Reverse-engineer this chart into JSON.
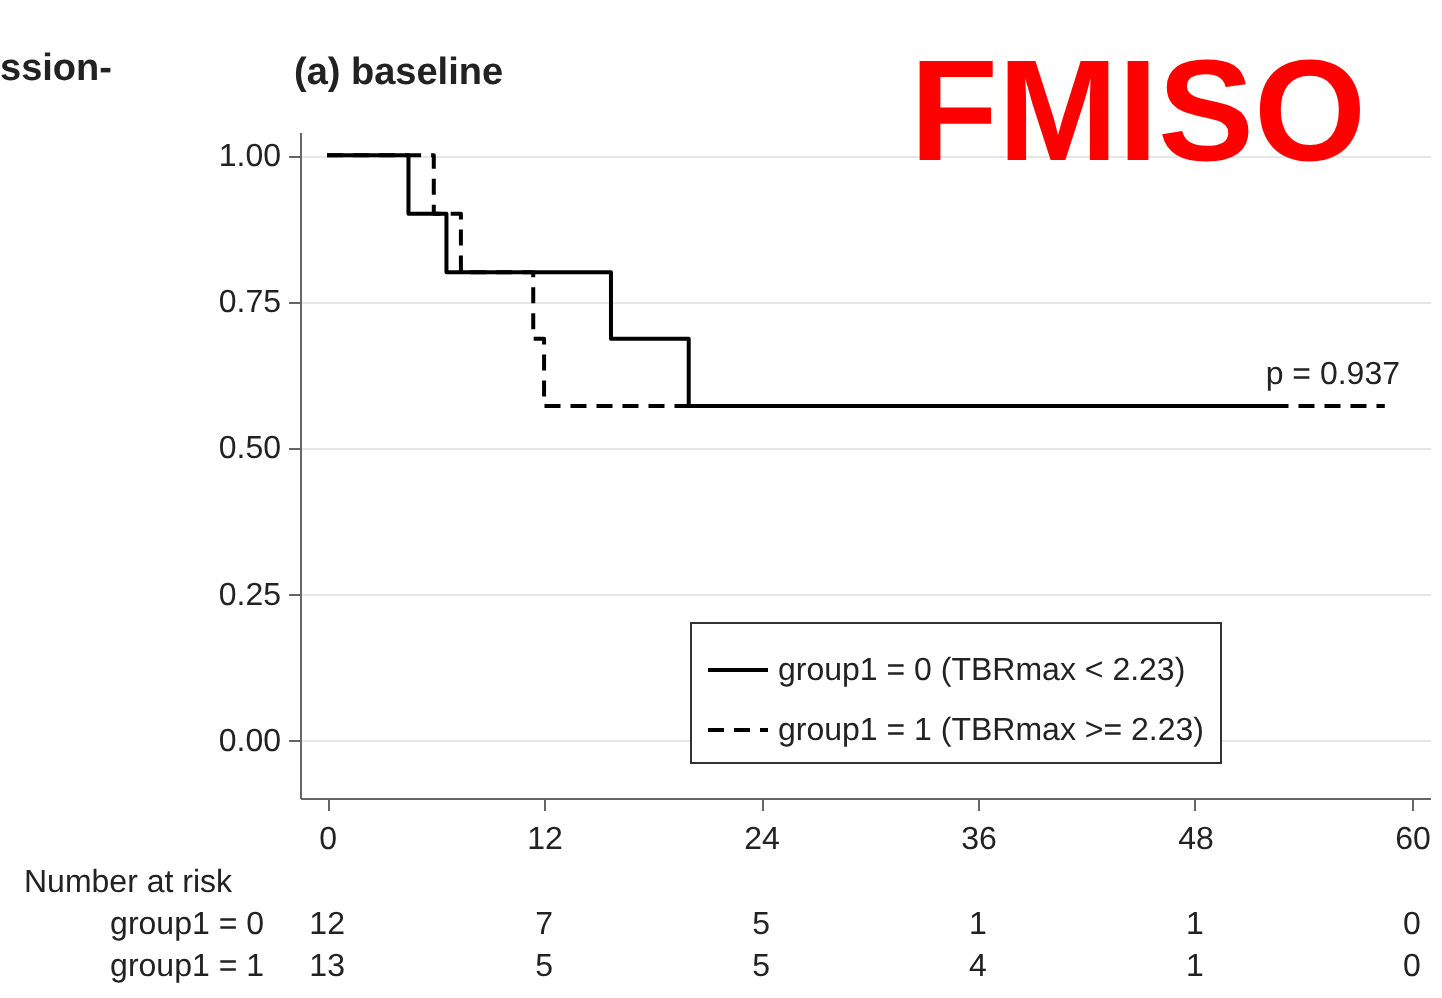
{
  "chart_data": {
    "type": "step",
    "title": "(a) baseline",
    "series": [
      {
        "name": "group1 = 0 (TBRmax < 2.23)",
        "color": "#000000",
        "line_style": "solid",
        "x": [
          0,
          4.5,
          6.6,
          15.7,
          20,
          52.4
        ],
        "values": [
          1,
          0.9,
          0.8,
          0.686,
          0.571,
          0.571
        ]
      },
      {
        "name": "group1 = 1 (TBRmax >= 2.23)",
        "color": "#000000",
        "line_style": "dashed",
        "x": [
          0,
          5.9,
          7.4,
          11.4,
          12,
          58.5
        ],
        "values": [
          1,
          0.9,
          0.8,
          0.686,
          0.571,
          0.571
        ]
      }
    ],
    "xlim": [
      -1.5,
      61
    ],
    "xticks": [
      0,
      12,
      24,
      36,
      48,
      60
    ],
    "ylim": [
      -0.1,
      1.04
    ],
    "yticks": [
      {
        "value": 0,
        "label": "0.00"
      },
      {
        "value": 0.25,
        "label": "0.25"
      },
      {
        "value": 0.5,
        "label": "0.50"
      },
      {
        "value": 0.75,
        "label": "0.75"
      },
      {
        "value": 1,
        "label": "1.00"
      }
    ],
    "grid": "y",
    "legend": "bottom right",
    "marker": "none",
    "annotations": [
      "ssion-",
      "FMISO",
      "p = 0.937",
      "Number at risk",
      "group1 = 0",
      "12",
      "7",
      "5",
      "1",
      "1",
      "0",
      "group1 = 1",
      "13",
      "5",
      "5",
      "4",
      "1",
      "0"
    ]
  }
}
